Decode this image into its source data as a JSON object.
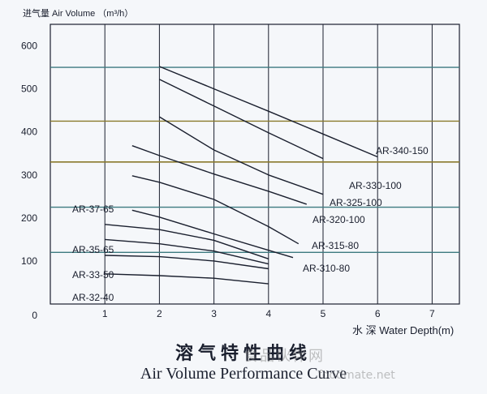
{
  "chart_data": {
    "type": "line",
    "title": "溶气特性曲线",
    "subtitle": "Air Volume Performance Curve",
    "ylabel": "进气量 Air Volume （m³/h）",
    "xlabel": "水 深 Water Depth(m)",
    "xlim": [
      0,
      7.5
    ],
    "ylim": [
      0,
      650
    ],
    "x_ticks": [
      1,
      2,
      3,
      4,
      5,
      6,
      7
    ],
    "y_ticks": [
      0,
      100,
      200,
      300,
      400,
      500,
      600
    ],
    "series": [
      {
        "name": "AR-340-150",
        "points": [
          [
            2.0,
            552
          ],
          [
            3.0,
            500
          ],
          [
            4.0,
            448
          ],
          [
            5.0,
            395
          ],
          [
            6.0,
            342
          ]
        ]
      },
      {
        "name": "AR-330-100",
        "points": [
          [
            2.0,
            522
          ],
          [
            3.0,
            460
          ],
          [
            4.0,
            398
          ],
          [
            5.0,
            338
          ]
        ]
      },
      {
        "name": "AR-325-100",
        "points": [
          [
            2.0,
            435
          ],
          [
            3.0,
            358
          ],
          [
            4.0,
            300
          ],
          [
            5.0,
            255
          ]
        ]
      },
      {
        "name": "AR-320-100",
        "points": [
          [
            1.5,
            368
          ],
          [
            2.0,
            345
          ],
          [
            3.0,
            302
          ],
          [
            4.0,
            262
          ],
          [
            4.7,
            232
          ]
        ]
      },
      {
        "name": "AR-315-80",
        "points": [
          [
            1.5,
            298
          ],
          [
            2.0,
            283
          ],
          [
            3.0,
            243
          ],
          [
            4.0,
            180
          ],
          [
            4.55,
            140
          ]
        ]
      },
      {
        "name": "AR-310-80",
        "points": [
          [
            1.5,
            218
          ],
          [
            2.0,
            202
          ],
          [
            3.0,
            163
          ],
          [
            4.0,
            125
          ],
          [
            4.45,
            108
          ]
        ]
      },
      {
        "name": "AR-37-65",
        "points": [
          [
            1.0,
            185
          ],
          [
            2.0,
            173
          ],
          [
            3.0,
            148
          ],
          [
            4.0,
            105
          ]
        ]
      },
      {
        "name": "AR-35-65",
        "points": [
          [
            1.0,
            150
          ],
          [
            2.0,
            140
          ],
          [
            3.0,
            123
          ],
          [
            4.0,
            93
          ]
        ]
      },
      {
        "name": "AR-33-50",
        "points": [
          [
            1.0,
            113
          ],
          [
            2.0,
            110
          ],
          [
            3.0,
            100
          ],
          [
            4.0,
            82
          ]
        ]
      },
      {
        "name": "AR-32-40",
        "points": [
          [
            1.0,
            70
          ],
          [
            2.0,
            66
          ],
          [
            3.0,
            60
          ],
          [
            4.0,
            47
          ]
        ]
      }
    ]
  },
  "captions": {
    "chinese_title": "溶气特性曲线",
    "english_title": "Air Volume Performance Curve"
  },
  "watermark": {
    "text": "食品伙伴网",
    "url": "foodmate.net"
  },
  "colors": {
    "background": "#f5f7fa",
    "ink": "#1a1f2e",
    "band_teal": "#3d7a80",
    "band_olive": "#8a7a2c"
  }
}
